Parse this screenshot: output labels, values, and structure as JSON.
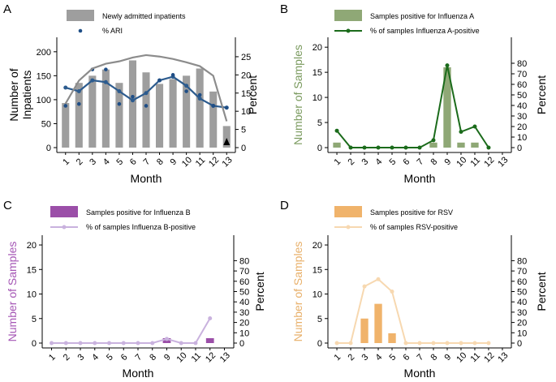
{
  "chart_data": [
    {
      "panel": "A",
      "type": "bar+line",
      "categories": [
        "1",
        "2",
        "3",
        "4",
        "5",
        "6",
        "7",
        "8",
        "9",
        "10",
        "11",
        "12",
        "13"
      ],
      "xlabel": "Month",
      "ylabel": "Number of Inpatients",
      "ylabel_lines": [
        "Number of",
        "Inpatients"
      ],
      "y2label": "Percent",
      "ylim": [
        0,
        220
      ],
      "yticks": [
        0,
        50,
        100,
        150,
        200
      ],
      "y2lim": [
        0,
        29
      ],
      "y2ticks": [
        0,
        5,
        10,
        15,
        20,
        25
      ],
      "legend": [
        "Newly admitted inpatients",
        "% ARI"
      ],
      "series": [
        {
          "name": "Newly admitted inpatients",
          "kind": "bar",
          "values": [
            93,
            135,
            150,
            163,
            135,
            182,
            157,
            133,
            143,
            150,
            165,
            117,
            45
          ]
        },
        {
          "name": "% ARI",
          "kind": "line",
          "axis": "right",
          "values": [
            16.5,
            15.5,
            18.5,
            18.0,
            15.5,
            13.0,
            15.0,
            18.5,
            19.5,
            17.0,
            13.5,
            11.5,
            11.0
          ]
        },
        {
          "name": "% ARI points",
          "kind": "points",
          "axis": "right",
          "values": [
            11.5,
            12,
            21.5,
            21.5,
            12,
            14,
            11.5,
            18.5,
            20,
            15.5,
            14.5,
            11.5,
            11.0
          ]
        },
        {
          "name": "inpatient trend",
          "kind": "trend",
          "values": [
            92,
            140,
            165,
            175,
            180,
            188,
            193,
            190,
            185,
            178,
            170,
            150,
            55
          ]
        }
      ],
      "colors": {
        "bar": "#9e9e9e",
        "trend": "#8c8c8c",
        "line": "#2c5b8e",
        "points": "#1f4e86",
        "marker": "#000000"
      }
    },
    {
      "panel": "B",
      "type": "bar+line",
      "categories": [
        "1",
        "2",
        "3",
        "4",
        "5",
        "6",
        "7",
        "8",
        "9",
        "10",
        "11",
        "12",
        "13"
      ],
      "xlabel": "Month",
      "ylabel": "Number of Samples",
      "ylim": [
        0,
        21
      ],
      "yticks": [
        0,
        5,
        10,
        15,
        20
      ],
      "y2lim": [
        0,
        100
      ],
      "y2ticks": [
        0,
        10,
        20,
        30,
        40,
        50,
        60,
        70,
        80
      ],
      "legend": [
        "Samples positive for Influenza A",
        "% of samples Influenza A-positive"
      ],
      "series": [
        {
          "name": "Samples positive for Influenza A",
          "kind": "bar",
          "values": [
            1,
            0,
            0,
            0,
            0,
            0,
            0,
            1,
            16,
            1,
            1,
            0,
            0
          ]
        },
        {
          "name": "% of samples Influenza A-positive",
          "kind": "line",
          "axis": "right",
          "values": [
            16,
            0,
            0,
            0,
            0,
            0,
            0,
            7,
            78,
            15,
            20,
            0,
            null
          ]
        }
      ],
      "colors": {
        "bar": "#8fa876",
        "line": "#1b6b1b",
        "label": "#7a9a5e"
      }
    },
    {
      "panel": "C",
      "type": "bar+line",
      "categories": [
        "1",
        "2",
        "3",
        "4",
        "5",
        "6",
        "7",
        "8",
        "9",
        "10",
        "11",
        "12",
        "13"
      ],
      "xlabel": "Month",
      "ylabel": "Number of Samples",
      "ylim": [
        0,
        21
      ],
      "yticks": [
        0,
        5,
        10,
        15,
        20
      ],
      "y2lim": [
        0,
        100
      ],
      "y2ticks": [
        0,
        10,
        20,
        30,
        40,
        50,
        60,
        70,
        80
      ],
      "legend": [
        "Samples positive for Influenza B",
        "% of samples Influenza B-positive"
      ],
      "series": [
        {
          "name": "Samples positive for Influenza B",
          "kind": "bar",
          "values": [
            0,
            0,
            0,
            0,
            0,
            0,
            0,
            0,
            1,
            0,
            0,
            1,
            0
          ]
        },
        {
          "name": "% of samples Influenza B-positive",
          "kind": "line",
          "axis": "right",
          "values": [
            0,
            0,
            0,
            0,
            0,
            0,
            0,
            0,
            4,
            0,
            0,
            24,
            null
          ]
        }
      ],
      "colors": {
        "bar": "#9b4fa8",
        "line": "#c9b2de",
        "label": "#a556b5"
      }
    },
    {
      "panel": "D",
      "type": "bar+line",
      "categories": [
        "1",
        "2",
        "3",
        "4",
        "5",
        "6",
        "7",
        "8",
        "9",
        "10",
        "11",
        "12",
        "13"
      ],
      "xlabel": "Month",
      "ylabel": "Number of Samples",
      "ylim": [
        0,
        21
      ],
      "yticks": [
        0,
        5,
        10,
        15,
        20
      ],
      "y2lim": [
        0,
        100
      ],
      "y2ticks": [
        0,
        10,
        20,
        30,
        40,
        50,
        60,
        70,
        80
      ],
      "legend": [
        "Samples positive for RSV",
        "% of samples RSV-positive"
      ],
      "series": [
        {
          "name": "Samples positive for RSV",
          "kind": "bar",
          "values": [
            0,
            0,
            5,
            8,
            2,
            0,
            0,
            0,
            0,
            0,
            0,
            0,
            0
          ]
        },
        {
          "name": "% of samples RSV-positive",
          "kind": "line",
          "axis": "right",
          "values": [
            0,
            0,
            55,
            62,
            50,
            0,
            0,
            0,
            0,
            0,
            0,
            0,
            null
          ]
        }
      ],
      "colors": {
        "bar": "#f0b36b",
        "line": "#f7d8b0",
        "label": "#e8b06a"
      }
    }
  ]
}
